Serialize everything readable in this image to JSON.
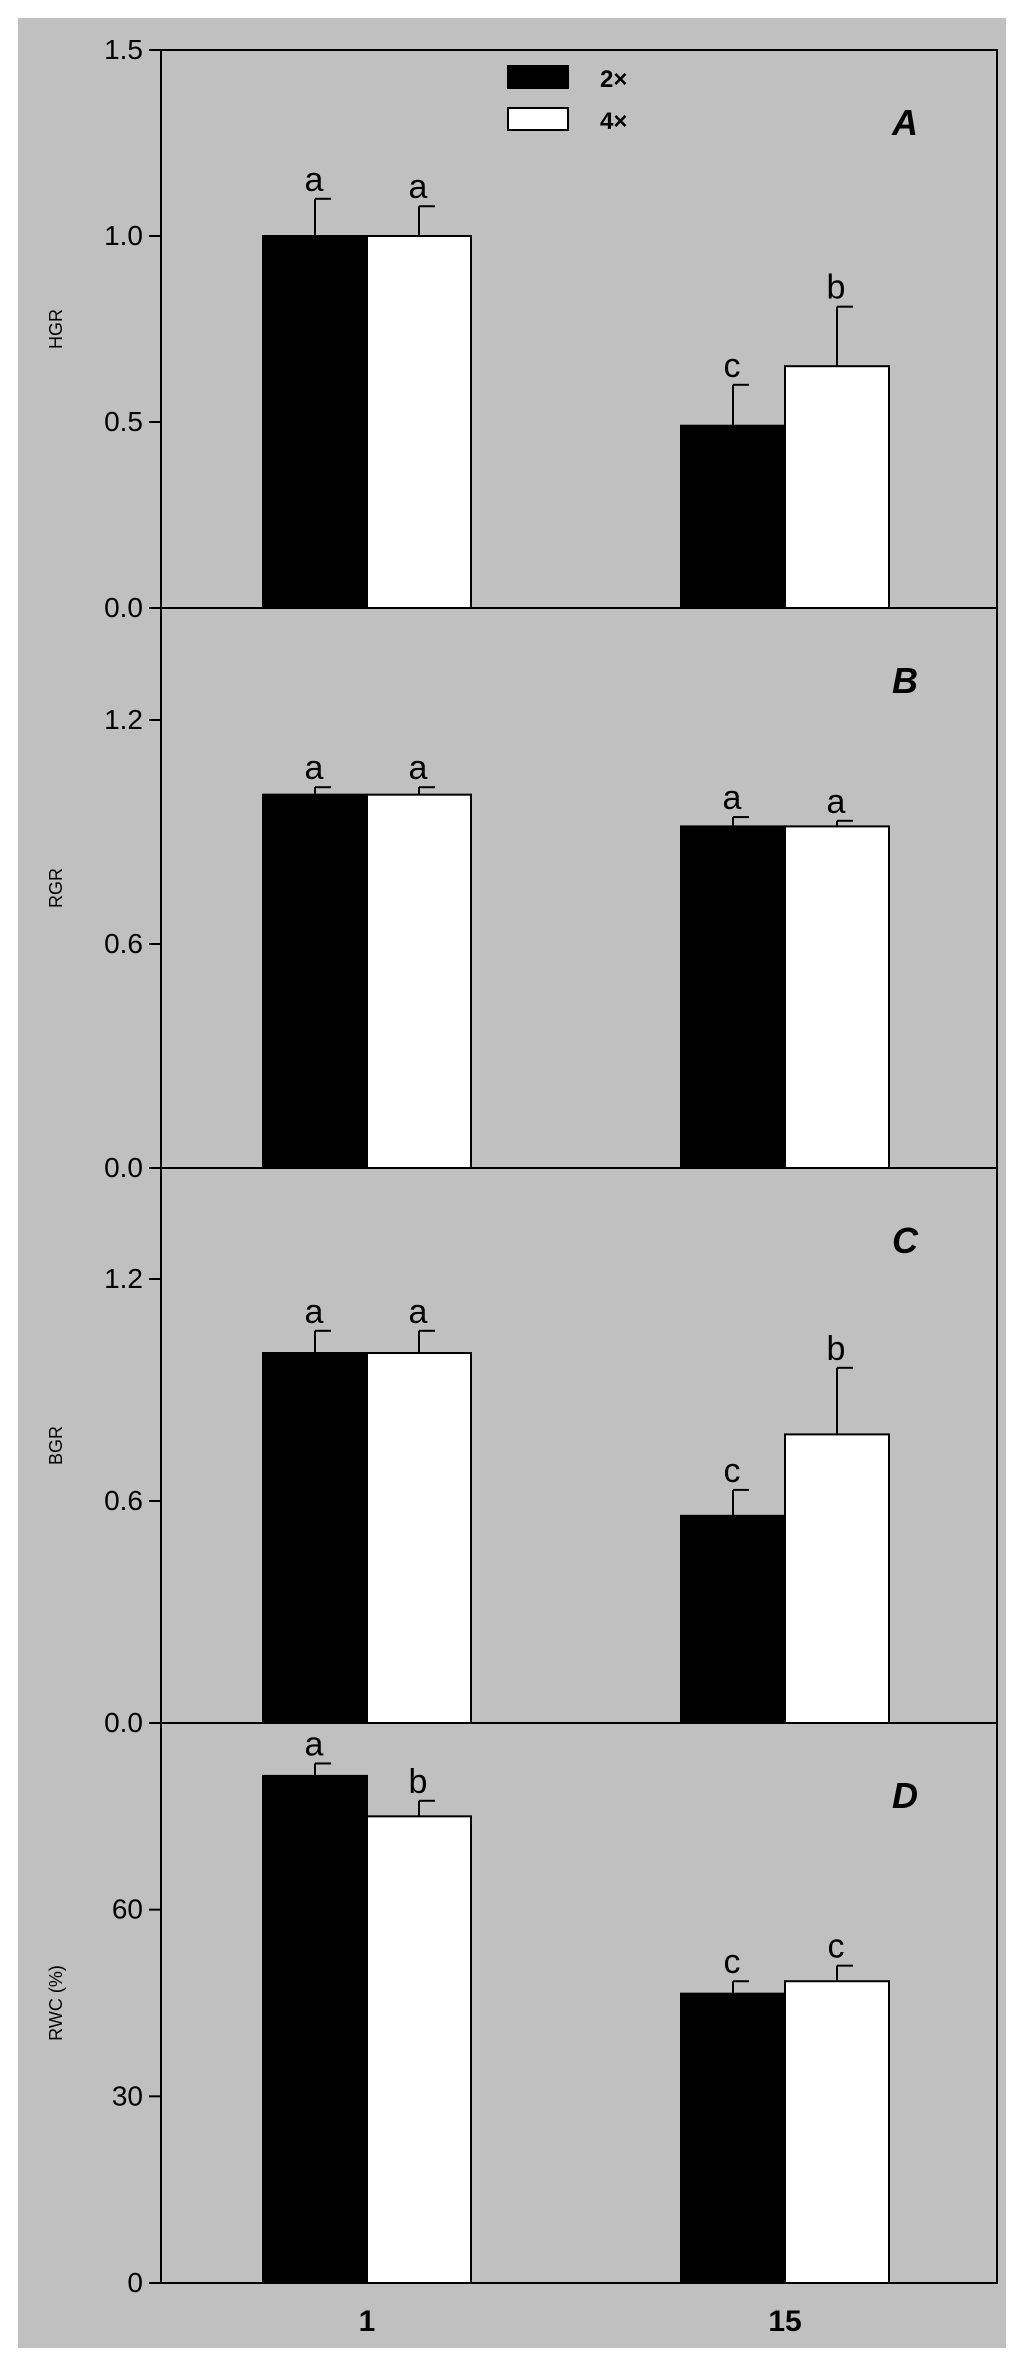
{
  "legend": {
    "position": "top-center",
    "entries": [
      {
        "label": "2×",
        "fill": "#000000"
      },
      {
        "label": "4×",
        "fill": "#ffffff"
      }
    ]
  },
  "colors": {
    "background": "#c0c0c0",
    "series_2x": "#000000",
    "series_4x": "#ffffff",
    "axis": "#000000"
  },
  "chart_data": [
    {
      "type": "bar",
      "panel": "A",
      "ylabel": "HGR",
      "ylim": [
        0,
        1.5
      ],
      "yticks": [
        "0.0",
        "0.5",
        "1.0",
        "1.5"
      ],
      "categories": [
        "1",
        "15"
      ],
      "series": [
        {
          "name": "2×",
          "values": [
            1.0,
            0.49
          ],
          "errors": [
            0.1,
            0.11
          ],
          "letters": [
            "a",
            "c"
          ]
        },
        {
          "name": "4×",
          "values": [
            1.0,
            0.65
          ],
          "errors": [
            0.08,
            0.16
          ],
          "letters": [
            "a",
            "b"
          ]
        }
      ]
    },
    {
      "type": "bar",
      "panel": "B",
      "ylabel": "RGR",
      "ylim": [
        0,
        1.5
      ],
      "yticks": [
        "0.0",
        "0.6",
        "1.2"
      ],
      "categories": [
        "1",
        "15"
      ],
      "series": [
        {
          "name": "2×",
          "values": [
            1.0,
            0.915
          ],
          "errors": [
            0.02,
            0.025
          ],
          "letters": [
            "a",
            "a"
          ]
        },
        {
          "name": "4×",
          "values": [
            1.0,
            0.915
          ],
          "errors": [
            0.02,
            0.015
          ],
          "letters": [
            "a",
            "a"
          ]
        }
      ]
    },
    {
      "type": "bar",
      "panel": "C",
      "ylabel": "BGR",
      "ylim": [
        0,
        1.5
      ],
      "yticks": [
        "0.0",
        "0.6",
        "1.2"
      ],
      "categories": [
        "1",
        "15"
      ],
      "series": [
        {
          "name": "2×",
          "values": [
            1.0,
            0.56
          ],
          "errors": [
            0.06,
            0.07
          ],
          "letters": [
            "a",
            "c"
          ]
        },
        {
          "name": "4×",
          "values": [
            1.0,
            0.78
          ],
          "errors": [
            0.06,
            0.18
          ],
          "letters": [
            "a",
            "b"
          ]
        }
      ]
    },
    {
      "type": "bar",
      "panel": "D",
      "ylabel": "RWC (%)",
      "ylim": [
        0,
        90
      ],
      "yticks": [
        "0",
        "30",
        "60"
      ],
      "categories": [
        "1",
        "15"
      ],
      "series": [
        {
          "name": "2×",
          "values": [
            81.5,
            46.5
          ],
          "errors": [
            2.0,
            2.0
          ],
          "letters": [
            "a",
            "c"
          ]
        },
        {
          "name": "4×",
          "values": [
            75,
            48.5
          ],
          "errors": [
            2.5,
            2.5
          ],
          "letters": [
            "b",
            "c"
          ]
        }
      ]
    }
  ]
}
